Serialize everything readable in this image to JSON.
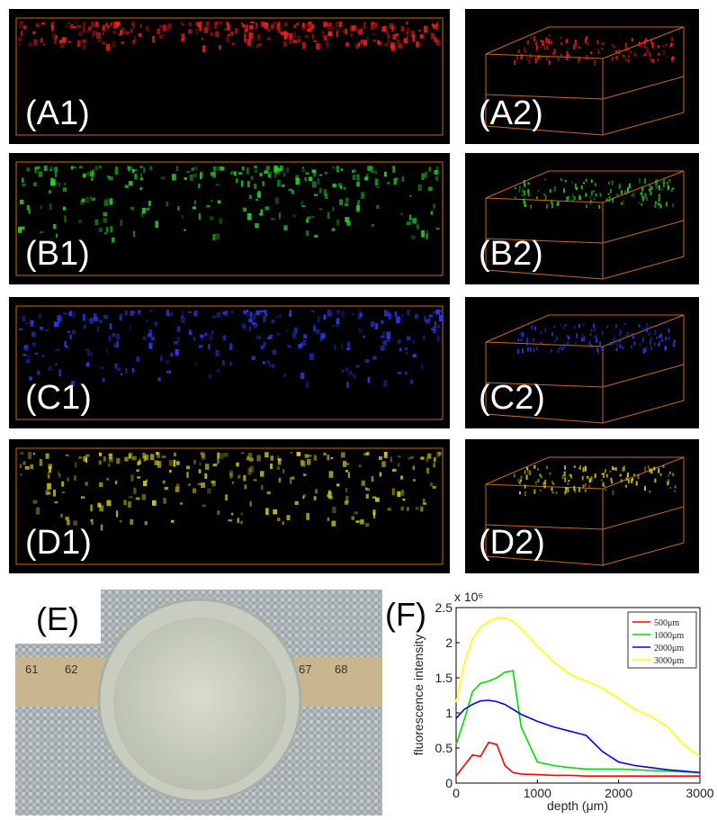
{
  "panels": [
    {
      "label": "(A1)"
    },
    {
      "label": "(A2)"
    },
    {
      "label": "(B1)"
    },
    {
      "label": "(B2)"
    },
    {
      "label": "(C1)"
    },
    {
      "label": "(C2)"
    },
    {
      "label": "(D1)"
    },
    {
      "label": "(D2)"
    }
  ],
  "photo": {
    "label": "(E)",
    "ruler_labels": [
      "61",
      "62",
      "67",
      "68"
    ]
  },
  "chart_data": {
    "type": "line",
    "panel_label": "(F)",
    "multiplier": "x 10⁶",
    "xlabel": "depth (μm)",
    "ylabel": "fluorescence intensity",
    "x": [
      0,
      100,
      200,
      300,
      400,
      500,
      600,
      700,
      800,
      1000,
      1200,
      1400,
      1600,
      1800,
      2000,
      2200,
      2400,
      2600,
      2800,
      3000
    ],
    "series": [
      {
        "name": "500μm",
        "color": "#ff0000",
        "values": [
          0.1,
          0.25,
          0.4,
          0.38,
          0.58,
          0.55,
          0.25,
          0.15,
          0.13,
          0.12,
          0.11,
          0.11,
          0.1,
          0.1,
          0.1,
          0.1,
          0.1,
          0.1,
          0.1,
          0.1
        ]
      },
      {
        "name": "1000μm",
        "color": "#00dd00",
        "values": [
          0.55,
          0.9,
          1.3,
          1.42,
          1.45,
          1.5,
          1.58,
          1.6,
          0.8,
          0.3,
          0.25,
          0.22,
          0.2,
          0.2,
          0.2,
          0.19,
          0.18,
          0.17,
          0.16,
          0.15
        ]
      },
      {
        "name": "2000μm",
        "color": "#0000ff",
        "values": [
          0.92,
          1.05,
          1.12,
          1.17,
          1.18,
          1.16,
          1.12,
          1.05,
          0.98,
          0.88,
          0.8,
          0.74,
          0.68,
          0.45,
          0.3,
          0.25,
          0.22,
          0.19,
          0.17,
          0.15
        ]
      },
      {
        "name": "3000μm",
        "color": "#ffff00",
        "values": [
          1.15,
          1.7,
          2.05,
          2.22,
          2.3,
          2.35,
          2.35,
          2.3,
          2.2,
          1.95,
          1.72,
          1.55,
          1.45,
          1.35,
          1.2,
          1.05,
          0.95,
          0.8,
          0.55,
          0.38
        ]
      }
    ],
    "xlim": [
      0,
      3000
    ],
    "xticks": [
      0,
      1000,
      2000,
      3000
    ],
    "ylim": [
      0,
      2.5
    ],
    "yticks": [
      0,
      0.5,
      1,
      1.5,
      2,
      2.5
    ],
    "legend": "upper right"
  }
}
